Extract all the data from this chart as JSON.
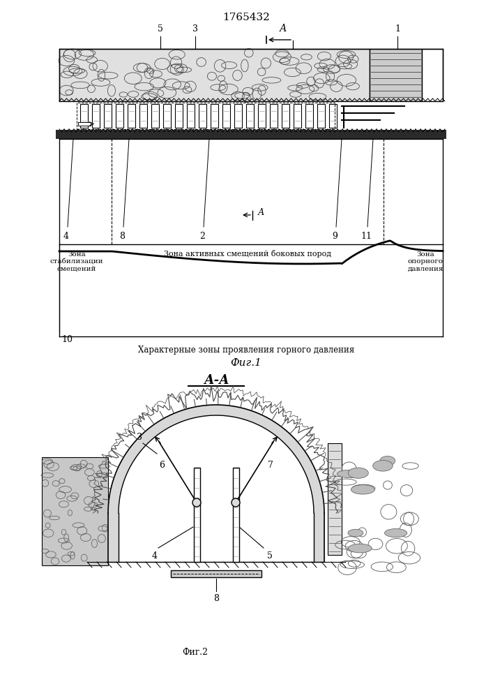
{
  "title": "1765432",
  "fig1_caption": "Характерные зоны проявления горного давления",
  "fig1_label": "Фиг.1",
  "fig2_header": "А-А",
  "fig2_caption": "Фиг.2",
  "bg_color": "#ffffff",
  "line_color": "#000000",
  "rock_fill": "#e0e0e0",
  "dark_fill": "#2a2a2a",
  "hatch_fill": "#c8c8c8",
  "arch_fill": "#d8d8d8"
}
